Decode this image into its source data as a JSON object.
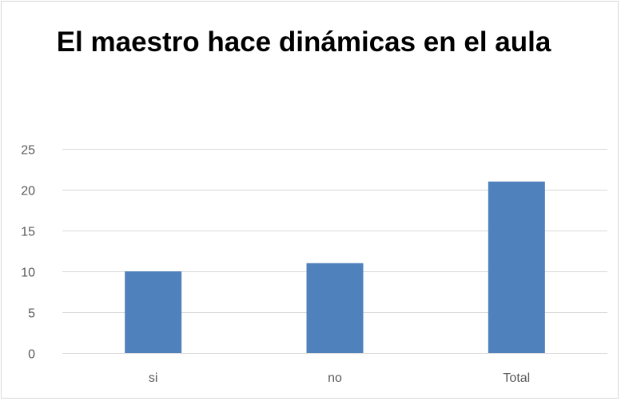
{
  "chart_data": {
    "type": "bar",
    "title": "El maestro hace dinámicas  en el aula",
    "categories": [
      "si",
      "no",
      "Total"
    ],
    "values": [
      10,
      11,
      21
    ],
    "ylim": [
      0,
      25
    ],
    "yticks": [
      0,
      5,
      10,
      15,
      20,
      25
    ],
    "xlabel": "",
    "ylabel": "",
    "grid": true,
    "legend": "none",
    "bar_color": "#4f81bd",
    "grid_color": "#d9d9d9"
  }
}
